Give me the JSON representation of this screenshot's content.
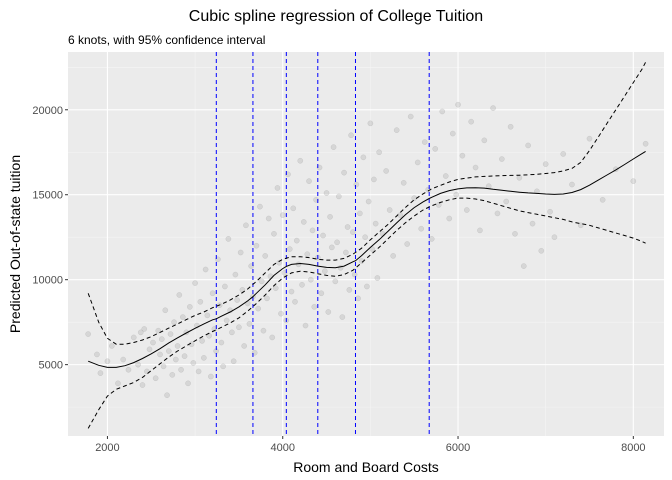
{
  "chart_data": {
    "type": "line",
    "title": "Cubic spline regression of College Tuition",
    "subtitle": "6 knots, with 95% confidence interval",
    "xlabel": "Room and Board Costs",
    "ylabel": "Predicted Out-of-state tuition",
    "xlim": [
      1550,
      8350
    ],
    "ylim": [
      800,
      23400
    ],
    "x_ticks": [
      2000,
      4000,
      6000,
      8000
    ],
    "y_ticks": [
      5000,
      10000,
      15000,
      20000
    ],
    "x_tick_labels": [
      "2000",
      "4000",
      "6000",
      "8000"
    ],
    "y_tick_labels": [
      "5000",
      "10000",
      "15000",
      "20000"
    ],
    "grid": true,
    "knots": [
      3242,
      3660,
      4041,
      4400,
      4830,
      5671
    ],
    "knot_color": "#0000ff",
    "series": [
      {
        "role": "fit",
        "style": "solid",
        "color": "#000000",
        "x": [
          1780,
          1900,
          2000,
          2100,
          2200,
          2300,
          2400,
          2500,
          2600,
          2700,
          2800,
          2900,
          3000,
          3100,
          3200,
          3242,
          3300,
          3400,
          3500,
          3600,
          3660,
          3700,
          3800,
          3900,
          4000,
          4041,
          4100,
          4200,
          4300,
          4400,
          4500,
          4600,
          4700,
          4800,
          4830,
          4900,
          5000,
          5100,
          5200,
          5300,
          5400,
          5500,
          5600,
          5671,
          5700,
          5800,
          5900,
          6000,
          6100,
          6200,
          6300,
          6400,
          6500,
          6600,
          6700,
          6800,
          6900,
          7000,
          7100,
          7200,
          7300,
          7400,
          7500,
          7600,
          7700,
          7800,
          7900,
          8000,
          8100,
          8140
        ],
        "values": [
          5200,
          4960,
          4840,
          4840,
          4940,
          5120,
          5360,
          5640,
          5940,
          6280,
          6580,
          6860,
          7140,
          7400,
          7640,
          7700,
          7850,
          8100,
          8400,
          8750,
          9000,
          9200,
          9700,
          10250,
          10650,
          10780,
          10900,
          10950,
          10900,
          10800,
          10720,
          10700,
          10800,
          11050,
          11120,
          11420,
          11900,
          12350,
          12840,
          13340,
          13820,
          14240,
          14580,
          14780,
          14850,
          15080,
          15240,
          15340,
          15400,
          15410,
          15390,
          15320,
          15260,
          15200,
          15150,
          15110,
          15080,
          15040,
          15020,
          15040,
          15130,
          15300,
          15560,
          15860,
          16160,
          16460,
          16780,
          17100,
          17420,
          17550
        ]
      },
      {
        "role": "upper-95-ci",
        "style": "dashed",
        "color": "#000000",
        "x": [
          1780,
          1900,
          2000,
          2100,
          2200,
          2300,
          2400,
          2500,
          2600,
          2700,
          2800,
          2900,
          3000,
          3100,
          3200,
          3300,
          3400,
          3500,
          3600,
          3700,
          3800,
          3900,
          4000,
          4100,
          4200,
          4300,
          4400,
          4500,
          4600,
          4700,
          4800,
          4900,
          5000,
          5100,
          5200,
          5300,
          5400,
          5500,
          5600,
          5700,
          5800,
          5900,
          6000,
          6100,
          6200,
          6300,
          6400,
          6500,
          6600,
          6700,
          6800,
          6900,
          7000,
          7100,
          7200,
          7300,
          7400,
          7500,
          7600,
          7700,
          7800,
          7900,
          8000,
          8100,
          8140
        ],
        "values": [
          9200,
          7500,
          6550,
          6200,
          6200,
          6300,
          6450,
          6650,
          6900,
          7150,
          7400,
          7650,
          7900,
          8100,
          8350,
          8550,
          8800,
          9100,
          9450,
          9900,
          10400,
          10900,
          11200,
          11350,
          11350,
          11300,
          11200,
          11150,
          11150,
          11250,
          11500,
          11850,
          12350,
          12800,
          13250,
          13750,
          14250,
          14700,
          15050,
          15350,
          15550,
          15750,
          15900,
          15980,
          16050,
          16080,
          16100,
          16120,
          16140,
          16150,
          16170,
          16200,
          16250,
          16300,
          16400,
          16550,
          16900,
          17600,
          18400,
          19200,
          20000,
          20800,
          21600,
          22400,
          22800
        ]
      },
      {
        "role": "lower-95-ci",
        "style": "dashed",
        "color": "#000000",
        "x": [
          1780,
          1900,
          2000,
          2100,
          2200,
          2300,
          2400,
          2500,
          2600,
          2700,
          2800,
          2900,
          3000,
          3100,
          3200,
          3300,
          3400,
          3500,
          3600,
          3700,
          3800,
          3900,
          4000,
          4100,
          4200,
          4300,
          4400,
          4500,
          4600,
          4700,
          4800,
          4900,
          5000,
          5100,
          5200,
          5300,
          5400,
          5500,
          5600,
          5700,
          5800,
          5900,
          6000,
          6100,
          6200,
          6300,
          6400,
          6500,
          6600,
          6700,
          6800,
          6900,
          7000,
          7100,
          7200,
          7300,
          7400,
          7500,
          7600,
          7700,
          7800,
          7900,
          8000,
          8100,
          8140
        ],
        "values": [
          1250,
          2350,
          3150,
          3550,
          3750,
          3950,
          4250,
          4650,
          5050,
          5450,
          5800,
          6100,
          6400,
          6700,
          6950,
          7200,
          7450,
          7750,
          8150,
          8600,
          9100,
          9650,
          10100,
          10400,
          10500,
          10450,
          10350,
          10250,
          10200,
          10300,
          10550,
          11000,
          11450,
          11900,
          12400,
          12900,
          13350,
          13750,
          14100,
          14350,
          14550,
          14700,
          14800,
          14800,
          14750,
          14650,
          14500,
          14350,
          14200,
          14050,
          13950,
          13850,
          13750,
          13650,
          13550,
          13400,
          13300,
          13200,
          13050,
          12900,
          12750,
          12600,
          12450,
          12250,
          12150
        ]
      }
    ],
    "scatter": {
      "color": "#a0a0a0",
      "opacity": 0.28,
      "points": [
        [
          1780,
          6800
        ],
        [
          1880,
          5600
        ],
        [
          1920,
          4500
        ],
        [
          2000,
          5200
        ],
        [
          2050,
          6100
        ],
        [
          2120,
          3900
        ],
        [
          2180,
          5300
        ],
        [
          2240,
          4700
        ],
        [
          2300,
          6600
        ],
        [
          2350,
          5000
        ],
        [
          2380,
          6900
        ],
        [
          2400,
          3800
        ],
        [
          2420,
          7100
        ],
        [
          2450,
          4600
        ],
        [
          2480,
          5900
        ],
        [
          2520,
          6300
        ],
        [
          2550,
          4200
        ],
        [
          2580,
          7000
        ],
        [
          2600,
          5600
        ],
        [
          2620,
          6500
        ],
        [
          2640,
          4900
        ],
        [
          2660,
          8200
        ],
        [
          2680,
          3200
        ],
        [
          2700,
          5800
        ],
        [
          2720,
          6800
        ],
        [
          2740,
          4400
        ],
        [
          2760,
          7500
        ],
        [
          2780,
          5300
        ],
        [
          2800,
          6100
        ],
        [
          2820,
          9100
        ],
        [
          2840,
          4700
        ],
        [
          2860,
          7800
        ],
        [
          2880,
          5500
        ],
        [
          2900,
          6900
        ],
        [
          2920,
          3900
        ],
        [
          2940,
          8400
        ],
        [
          2960,
          6200
        ],
        [
          2980,
          5100
        ],
        [
          3000,
          9800
        ],
        [
          3020,
          7300
        ],
        [
          3040,
          4600
        ],
        [
          3060,
          8700
        ],
        [
          3080,
          6400
        ],
        [
          3100,
          5400
        ],
        [
          3120,
          10600
        ],
        [
          3140,
          7900
        ],
        [
          3160,
          6700
        ],
        [
          3180,
          4300
        ],
        [
          3200,
          9200
        ],
        [
          3220,
          7100
        ],
        [
          3240,
          5800
        ],
        [
          3260,
          11200
        ],
        [
          3280,
          8500
        ],
        [
          3300,
          6300
        ],
        [
          3320,
          4900
        ],
        [
          3340,
          9600
        ],
        [
          3360,
          7600
        ],
        [
          3380,
          12400
        ],
        [
          3400,
          8200
        ],
        [
          3420,
          6900
        ],
        [
          3440,
          5200
        ],
        [
          3460,
          10300
        ],
        [
          3480,
          8800
        ],
        [
          3500,
          7200
        ],
        [
          3520,
          11600
        ],
        [
          3540,
          9400
        ],
        [
          3560,
          6100
        ],
        [
          3580,
          13200
        ],
        [
          3600,
          8600
        ],
        [
          3620,
          7400
        ],
        [
          3640,
          10800
        ],
        [
          3660,
          9000
        ],
        [
          3680,
          5700
        ],
        [
          3700,
          12000
        ],
        [
          3720,
          8300
        ],
        [
          3740,
          14300
        ],
        [
          3760,
          9900
        ],
        [
          3780,
          7000
        ],
        [
          3800,
          11400
        ],
        [
          3820,
          8900
        ],
        [
          3840,
          13600
        ],
        [
          3860,
          10200
        ],
        [
          3880,
          6600
        ],
        [
          3900,
          12700
        ],
        [
          3920,
          9500
        ],
        [
          3940,
          15400
        ],
        [
          3960,
          11000
        ],
        [
          3980,
          8000
        ],
        [
          4000,
          13800
        ],
        [
          4020,
          10400
        ],
        [
          4040,
          7600
        ],
        [
          4060,
          16200
        ],
        [
          4080,
          11800
        ],
        [
          4100,
          9300
        ],
        [
          4120,
          14200
        ],
        [
          4140,
          8700
        ],
        [
          4160,
          12300
        ],
        [
          4180,
          10900
        ],
        [
          4200,
          17000
        ],
        [
          4220,
          9700
        ],
        [
          4240,
          13400
        ],
        [
          4260,
          7300
        ],
        [
          4280,
          11500
        ],
        [
          4300,
          15800
        ],
        [
          4320,
          10000
        ],
        [
          4340,
          12900
        ],
        [
          4360,
          8400
        ],
        [
          4380,
          14700
        ],
        [
          4400,
          11300
        ],
        [
          4420,
          16600
        ],
        [
          4440,
          9200
        ],
        [
          4460,
          12600
        ],
        [
          4480,
          10500
        ],
        [
          4500,
          15100
        ],
        [
          4520,
          8100
        ],
        [
          4540,
          13700
        ],
        [
          4560,
          11900
        ],
        [
          4580,
          17800
        ],
        [
          4600,
          9900
        ],
        [
          4620,
          12200
        ],
        [
          4640,
          14900
        ],
        [
          4660,
          10700
        ],
        [
          4680,
          7800
        ],
        [
          4700,
          16300
        ],
        [
          4720,
          11600
        ],
        [
          4740,
          13100
        ],
        [
          4760,
          9400
        ],
        [
          4780,
          18500
        ],
        [
          4800,
          12800
        ],
        [
          4820,
          10300
        ],
        [
          4840,
          15600
        ],
        [
          4860,
          8900
        ],
        [
          4880,
          13900
        ],
        [
          4900,
          11100
        ],
        [
          4920,
          17200
        ],
        [
          4940,
          12500
        ],
        [
          4960,
          9600
        ],
        [
          4980,
          14600
        ],
        [
          5000,
          19200
        ],
        [
          5020,
          11800
        ],
        [
          5040,
          15900
        ],
        [
          5060,
          13300
        ],
        [
          5080,
          10100
        ],
        [
          5100,
          17500
        ],
        [
          5140,
          12700
        ],
        [
          5180,
          16400
        ],
        [
          5220,
          14100
        ],
        [
          5260,
          11400
        ],
        [
          5300,
          18800
        ],
        [
          5340,
          13800
        ],
        [
          5380,
          15700
        ],
        [
          5420,
          12100
        ],
        [
          5460,
          19600
        ],
        [
          5500,
          14800
        ],
        [
          5540,
          16900
        ],
        [
          5580,
          13000
        ],
        [
          5620,
          18100
        ],
        [
          5660,
          15300
        ],
        [
          5700,
          12400
        ],
        [
          5740,
          17700
        ],
        [
          5780,
          14400
        ],
        [
          5820,
          19900
        ],
        [
          5860,
          16100
        ],
        [
          5900,
          13600
        ],
        [
          5940,
          18600
        ],
        [
          5980,
          15000
        ],
        [
          6000,
          20300
        ],
        [
          6050,
          17300
        ],
        [
          6100,
          14100
        ],
        [
          6150,
          19300
        ],
        [
          6200,
          16600
        ],
        [
          6250,
          12900
        ],
        [
          6300,
          18200
        ],
        [
          6350,
          15500
        ],
        [
          6400,
          20100
        ],
        [
          6450,
          13900
        ],
        [
          6500,
          17100
        ],
        [
          6550,
          14600
        ],
        [
          6600,
          19000
        ],
        [
          6650,
          12700
        ],
        [
          6700,
          16000
        ],
        [
          6750,
          10800
        ],
        [
          6800,
          17900
        ],
        [
          6850,
          13300
        ],
        [
          6900,
          15200
        ],
        [
          6950,
          11700
        ],
        [
          7000,
          16800
        ],
        [
          7050,
          14000
        ],
        [
          7100,
          12500
        ],
        [
          7200,
          17400
        ],
        [
          7300,
          15600
        ],
        [
          7400,
          13200
        ],
        [
          7500,
          18300
        ],
        [
          7650,
          14700
        ],
        [
          7800,
          16500
        ],
        [
          8000,
          15800
        ],
        [
          8140,
          18000
        ]
      ]
    }
  }
}
